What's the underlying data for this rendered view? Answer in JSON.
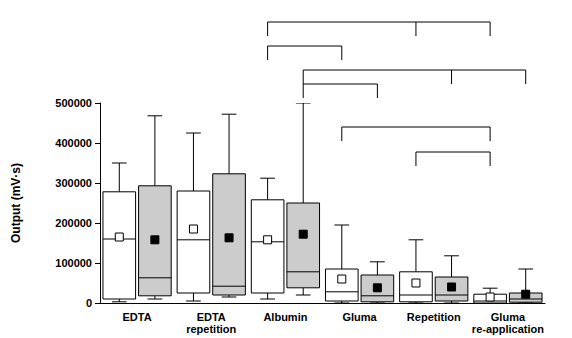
{
  "chart_data": {
    "type": "boxplot",
    "y_label": "Output (mV·s)",
    "categories": [
      "EDTA",
      "EDTA\nrepetition",
      "Albumin",
      "Gluma",
      "Repetition",
      "Gluma\nre-application"
    ],
    "series": [
      {
        "color": "#ffffff",
        "marker": "square-open",
        "values": [
          [
            3000,
            10000,
            160000,
            278000,
            350000
          ],
          [
            5000,
            25000,
            158000,
            280000,
            425000
          ],
          [
            10000,
            25000,
            153000,
            258000,
            312000
          ],
          [
            0,
            5000,
            28000,
            85000,
            195000
          ],
          [
            0,
            3000,
            20000,
            78000,
            158000
          ],
          [
            0,
            0,
            5000,
            22000,
            37000
          ]
        ],
        "means": [
          165000,
          185000,
          158000,
          60000,
          50000,
          15000
        ]
      },
      {
        "color": "#cccccc",
        "marker": "square",
        "values": [
          [
            10000,
            18000,
            63000,
            293000,
            468000
          ],
          [
            15000,
            20000,
            42000,
            323000,
            472000
          ],
          [
            20000,
            38000,
            78000,
            250000,
            500000
          ],
          [
            0,
            3000,
            18000,
            70000,
            103000
          ],
          [
            0,
            5000,
            20000,
            65000,
            118000
          ],
          [
            0,
            2000,
            10000,
            25000,
            85000
          ]
        ],
        "means": [
          158000,
          163000,
          172000,
          38000,
          40000,
          22000
        ]
      }
    ],
    "ylim": [
      0,
      500000
    ],
    "yticks": [
      0,
      100000,
      200000,
      300000,
      400000,
      500000
    ],
    "grid": false,
    "brackets": [
      {
        "from": [
          "Albumin",
          0
        ],
        "to": [
          [
            "Repetition",
            0
          ],
          [
            "Gluma\nre-application",
            0
          ]
        ]
      },
      {
        "from": [
          "Albumin",
          0
        ],
        "to": [
          [
            "Gluma",
            0
          ]
        ]
      },
      {
        "from": [
          "Albumin",
          1
        ],
        "to": [
          [
            "Repetition",
            1
          ],
          [
            "Gluma\nre-application",
            1
          ]
        ]
      },
      {
        "from": [
          "Albumin",
          1
        ],
        "to": [
          [
            "Gluma",
            1
          ]
        ]
      },
      {
        "from": [
          "Gluma",
          0
        ],
        "to": [
          [
            "Gluma\nre-application",
            0
          ]
        ]
      },
      {
        "from": [
          "Repetition",
          0
        ],
        "to": [
          [
            "Gluma\nre-application",
            0
          ]
        ]
      }
    ]
  }
}
